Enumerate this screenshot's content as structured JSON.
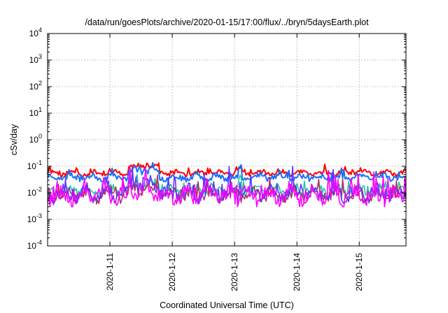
{
  "chart_data": {
    "type": "line",
    "title": "/data/run/goesPlots/archive/2020-01-15/17:00/flux/../bryn/5daysEarth.plot",
    "xlabel": "Coordinated Universal Time (UTC)",
    "ylabel": "cSv/day",
    "yscale": "log",
    "ylim": [
      0.0001,
      10000
    ],
    "xlim": [
      10.0,
      15.75
    ],
    "grid": true,
    "y_ticks": [
      {
        "value": 0.0001,
        "base": "10",
        "exp": "-4"
      },
      {
        "value": 0.001,
        "base": "10",
        "exp": "-3"
      },
      {
        "value": 0.01,
        "base": "10",
        "exp": "-2"
      },
      {
        "value": 0.1,
        "base": "10",
        "exp": "-1"
      },
      {
        "value": 1,
        "base": "10",
        "exp": "0"
      },
      {
        "value": 10,
        "base": "10",
        "exp": "1"
      },
      {
        "value": 100,
        "base": "10",
        "exp": "2"
      },
      {
        "value": 1000,
        "base": "10",
        "exp": "3"
      },
      {
        "value": 10000,
        "base": "10",
        "exp": "4"
      }
    ],
    "x_ticks": [
      {
        "value": 11,
        "label": "2020-1-11"
      },
      {
        "value": 12,
        "label": "2020-1-12"
      },
      {
        "value": 13,
        "label": "2020-1-13"
      },
      {
        "value": 14,
        "label": "2020-1-14"
      },
      {
        "value": 15,
        "label": "2020-1-15"
      }
    ],
    "series": [
      {
        "color": "#ff0000",
        "base": 0.055,
        "amp": 0.18,
        "seed": 11
      },
      {
        "color": "#1a6fff",
        "base": 0.038,
        "amp": 0.22,
        "seed": 23
      },
      {
        "color": "#20c8a0",
        "base": 0.012,
        "amp": 0.35,
        "seed": 37
      },
      {
        "color": "#b03060",
        "base": 0.0085,
        "amp": 0.45,
        "seed": 41
      },
      {
        "color": "#6030ff",
        "base": 0.0095,
        "amp": 0.55,
        "seed": 53
      },
      {
        "color": "#ff00ff",
        "base": 0.0075,
        "amp": 0.6,
        "seed": 67
      }
    ]
  }
}
